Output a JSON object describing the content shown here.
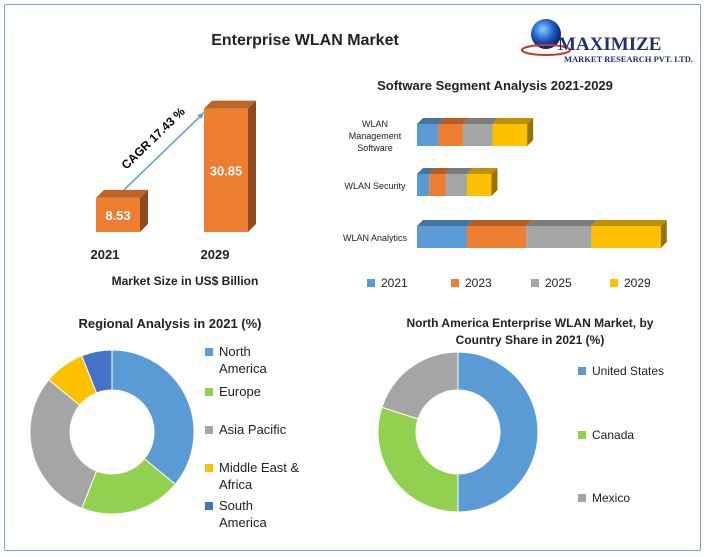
{
  "page": {
    "title": "Enterprise WLAN Market",
    "logo": {
      "name": "MAXIMIZE",
      "tagline": "MARKET RESEARCH PVT. LTD."
    }
  },
  "chart_data": [
    {
      "type": "bar",
      "title": "",
      "xlabel": "Market Size in US$ Billion",
      "categories": [
        "2021",
        "2029"
      ],
      "values": [
        8.53,
        30.85
      ],
      "data_labels": [
        "8.53",
        "30.85"
      ],
      "ylim": [
        0,
        35
      ],
      "annotation": "CAGR 17.43 %",
      "color": "#ed7d31"
    },
    {
      "type": "bar",
      "orientation": "horizontal-stacked",
      "title": "Software Segment Analysis 2021-2029",
      "categories": [
        "WLAN Management Software",
        "WLAN Security",
        "WLAN Analytics"
      ],
      "category_lines": [
        [
          "WLAN",
          "Management",
          "Software"
        ],
        [
          "WLAN Security"
        ],
        [
          "WLAN Analytics"
        ]
      ],
      "series": [
        {
          "name": "2021",
          "values": [
            2.1,
            1.2,
            4.9
          ],
          "color": "#5b9bd5"
        },
        {
          "name": "2023",
          "values": [
            2.4,
            1.6,
            5.8
          ],
          "color": "#ed7d31"
        },
        {
          "name": "2025",
          "values": [
            2.9,
            2.1,
            6.4
          ],
          "color": "#a5a5a5"
        },
        {
          "name": "2029",
          "values": [
            3.4,
            2.4,
            6.8
          ],
          "color": "#ffc000"
        }
      ],
      "legend_position": "bottom"
    },
    {
      "type": "pie",
      "style": "donut",
      "title": "Regional Analysis in 2021 (%)",
      "categories": [
        "North America",
        "Europe",
        "Asia Pacific",
        "Middle East & Africa",
        "South America"
      ],
      "category_lines": [
        [
          "North",
          "America"
        ],
        [
          "Europe"
        ],
        [
          "Asia Pacific"
        ],
        [
          "Middle East &",
          "Africa"
        ],
        [
          "South",
          "America"
        ]
      ],
      "values": [
        36,
        20,
        30,
        8,
        6
      ],
      "colors": [
        "#5b9bd5",
        "#92d050",
        "#a5a5a5",
        "#ffc000",
        "#4472c4"
      ],
      "legend_position": "right"
    },
    {
      "type": "pie",
      "style": "donut",
      "title_lines": [
        "North America Enterprise WLAN Market, by",
        "Country Share in 2021 (%)"
      ],
      "categories": [
        "United States",
        "Canada",
        "Mexico"
      ],
      "values": [
        50,
        30,
        20
      ],
      "colors": [
        "#5b9bd5",
        "#92d050",
        "#a5a5a5"
      ],
      "legend_position": "right"
    }
  ]
}
